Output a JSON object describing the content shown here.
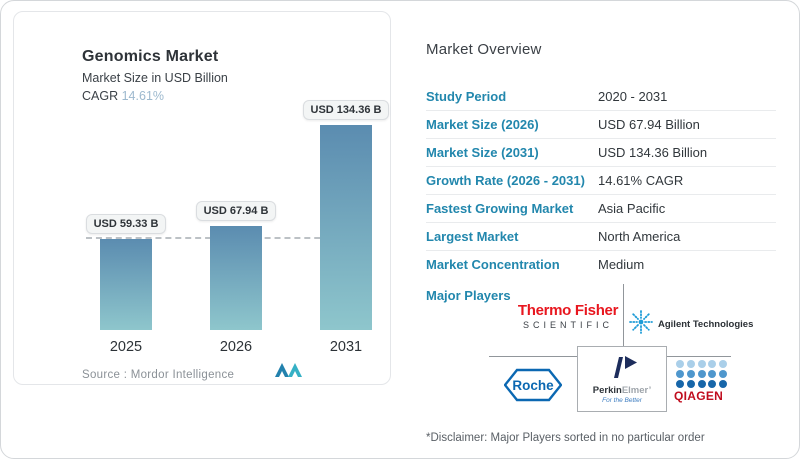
{
  "chart_card": {
    "title": "Genomics Market",
    "subtitle": "Market Size in USD Billion",
    "cagr_label": "CAGR",
    "cagr_value": "14.61%",
    "source_text": "Source :  Mordor Intelligence"
  },
  "chart_data": {
    "type": "bar",
    "title": "Genomics Market",
    "ylabel": "Market Size in USD Billion",
    "categories": [
      "2025",
      "2026",
      "2031"
    ],
    "values": [
      59.33,
      67.94,
      134.36
    ],
    "bar_labels": [
      "USD 59.33 B",
      "USD 67.94 B",
      "USD 134.36 B"
    ],
    "cagr": "14.61%",
    "reference_line_value": 59.33,
    "ylim": [
      0,
      140
    ],
    "grid": false,
    "legend": false,
    "bar_color_top": "#5b8cb0",
    "bar_color_bottom": "#8ec6cc"
  },
  "overview": {
    "heading": "Market Overview",
    "rows": [
      {
        "label": "Study Period",
        "value": "2020 - 2031"
      },
      {
        "label": "Market Size (2026)",
        "value": "USD 67.94 Billion"
      },
      {
        "label": "Market Size (2031)",
        "value": "USD 134.36 Billion"
      },
      {
        "label": "Growth Rate (2026 - 2031)",
        "value": "14.61% CAGR"
      },
      {
        "label": "Fastest Growing Market",
        "value": "Asia Pacific"
      },
      {
        "label": "Largest Market",
        "value": "North America"
      },
      {
        "label": "Market Concentration",
        "value": "Medium"
      }
    ]
  },
  "major_players": {
    "label": "Major Players",
    "companies": [
      "Thermo Fisher Scientific",
      "Agilent Technologies",
      "Roche",
      "PerkinElmer",
      "QIAGEN"
    ],
    "logos": {
      "thermo_line1": "Thermo Fisher",
      "thermo_line2": "SCIENTIFIC",
      "agilent": "Agilent Technologies",
      "roche": "Roche",
      "perkin_part1": "Perkin",
      "perkin_part2": "Elmer’",
      "perkin_tagline": "For the Better",
      "qiagen": "QIAGEN"
    }
  },
  "disclaimer": "*Disclaimer: Major Players sorted in no particular order",
  "colors": {
    "label_teal": "#2287ad",
    "cagr_accent": "#9db9ce",
    "thermo_red": "#e8171f",
    "agilent_blue": "#1e9cd7",
    "roche_blue": "#0b68b2",
    "perkin_navy": "#1d2d5c",
    "qiagen_red": "#c00d1e",
    "qiagen_dot_light": "#aacfe9",
    "qiagen_dot_mid": "#4f97cd",
    "qiagen_dot_dark": "#1766a9",
    "mordor_dark": "#2281ad",
    "mordor_teal": "#35b0c5"
  }
}
